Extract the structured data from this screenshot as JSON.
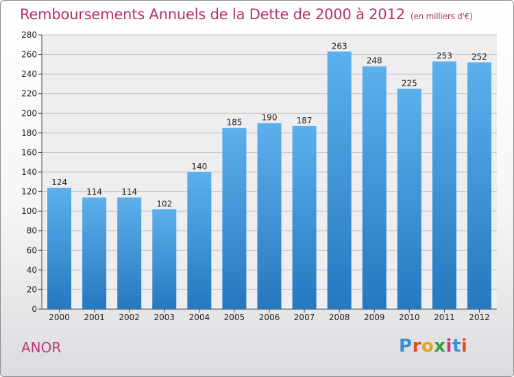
{
  "title": "Remboursements Annuels de la Dette de 2000 à 2012",
  "unit": "(en milliers d'€)",
  "commune": "ANOR",
  "logo": {
    "letters": [
      "P",
      "r",
      "o",
      "x",
      "i",
      "t",
      "i"
    ],
    "colors": [
      "#3a8fd8",
      "#e0501e",
      "#e0a51e",
      "#3a9a3a",
      "#c13876",
      "#3a8fd8",
      "#e0501e"
    ]
  },
  "colors": {
    "bar": "#4a9fe0",
    "title": "#b5306b"
  },
  "chart_data": {
    "type": "bar",
    "title": "Remboursements Annuels de la Dette de 2000 à 2012",
    "categories": [
      "2000",
      "2001",
      "2002",
      "2003",
      "2004",
      "2005",
      "2006",
      "2007",
      "2008",
      "2009",
      "2010",
      "2011",
      "2012"
    ],
    "values": [
      124,
      114,
      114,
      102,
      140,
      185,
      190,
      187,
      263,
      248,
      225,
      253,
      252
    ],
    "ylim": [
      0,
      280
    ],
    "yticks": [
      0,
      20,
      40,
      60,
      80,
      100,
      120,
      140,
      160,
      180,
      200,
      220,
      240,
      260,
      280
    ],
    "grid": true,
    "xlabel": "",
    "ylabel": ""
  }
}
